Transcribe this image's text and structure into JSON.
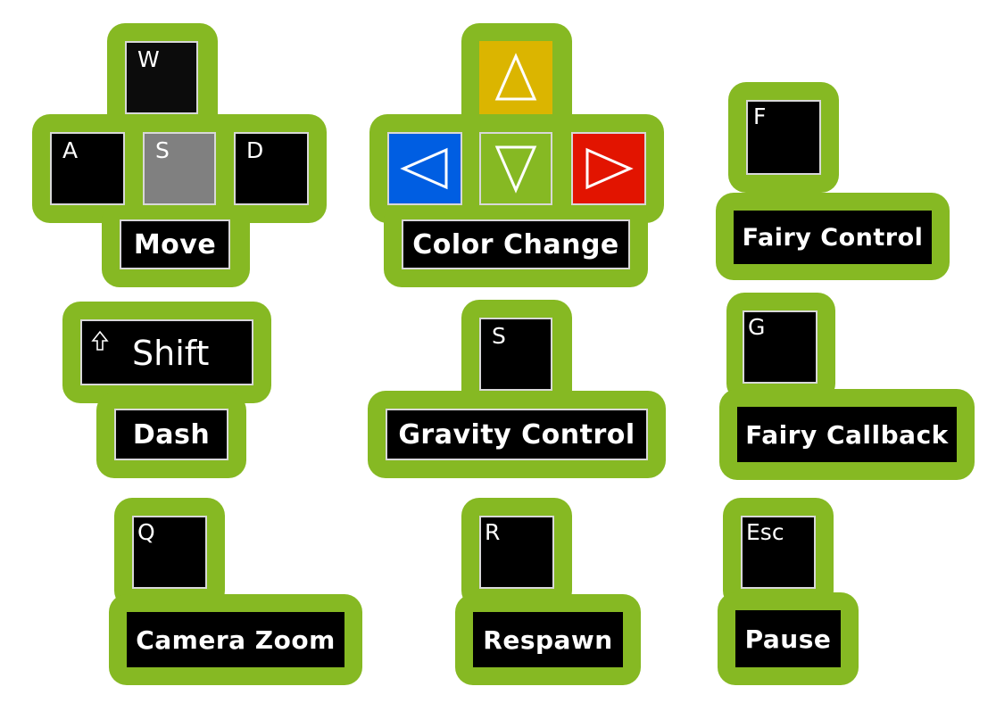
{
  "colors": {
    "frame": "#86b923",
    "key": "#000000",
    "key_pressed": "#808080",
    "triangle_up": "#dbb500",
    "triangle_left": "#005ee2",
    "triangle_down": "#86b923",
    "triangle_right": "#e21400"
  },
  "move": {
    "keys": {
      "w": "W",
      "a": "A",
      "s": "S",
      "d": "D"
    },
    "label": "Move"
  },
  "color_change": {
    "icons": [
      "triangle-up-icon",
      "triangle-left-icon",
      "triangle-down-icon",
      "triangle-right-icon"
    ],
    "label": "Color Change"
  },
  "fairy_control": {
    "key": "F",
    "label": "Fairy Control"
  },
  "dash": {
    "key": "Shift",
    "icon": "shift-arrow-icon",
    "label": "Dash"
  },
  "gravity_control": {
    "key": "S",
    "label": "Gravity Control"
  },
  "fairy_callback": {
    "key": "G",
    "label": "Fairy Callback"
  },
  "camera_zoom": {
    "key": "Q",
    "label": "Camera Zoom"
  },
  "respawn": {
    "key": "R",
    "label": "Respawn"
  },
  "pause": {
    "key": "Esc",
    "label": "Pause"
  }
}
